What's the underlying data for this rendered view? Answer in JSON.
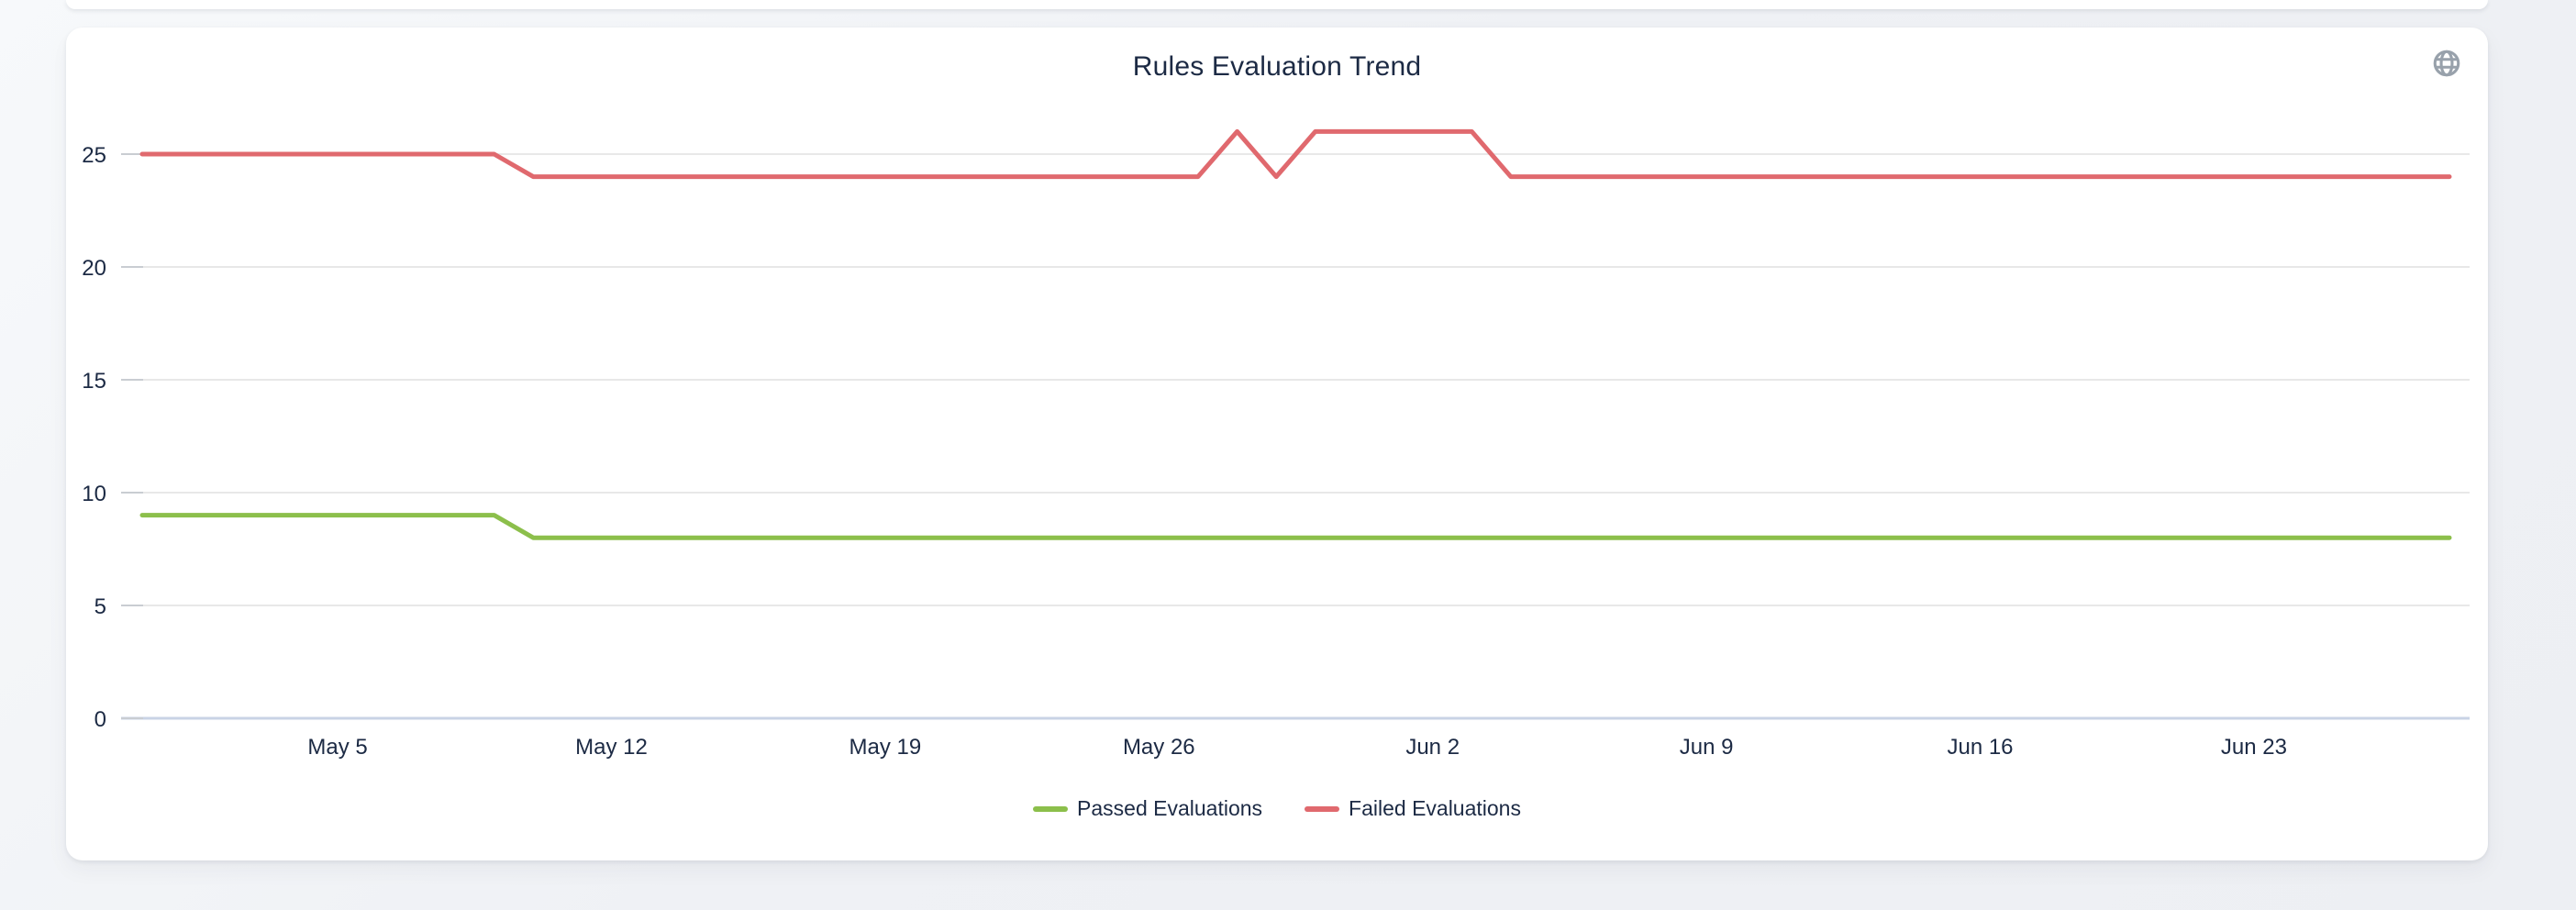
{
  "page": {
    "background": "#eff1f5"
  },
  "card": {
    "title": "Rules Evaluation Trend"
  },
  "icons": {
    "top_right": "globe-icon"
  },
  "colors": {
    "card_bg": "#ffffff",
    "text": "#1c2a44",
    "gridline": "#e8e8e8",
    "tick_stub": "#c9cdd2",
    "zero_line": "#c9d3e5",
    "passed": "#8cbf4b",
    "failed": "#e0696e",
    "globe_icon": "#98a1ab"
  },
  "chart_data": {
    "type": "line",
    "title": "Rules Evaluation Trend",
    "x_cadence": "daily",
    "x_start_date": "Apr 30",
    "x_end_date": "Jun 28",
    "x_tick_labels": [
      "May 5",
      "May 12",
      "May 19",
      "May 26",
      "Jun 2",
      "Jun 9",
      "Jun 16",
      "Jun 23"
    ],
    "x_tick_indices": [
      5,
      12,
      19,
      26,
      33,
      40,
      47,
      54
    ],
    "y_ticks": [
      0,
      5,
      10,
      15,
      20,
      25
    ],
    "ylim": [
      0,
      26.5
    ],
    "grid": "horizontal",
    "legend_position": "bottom",
    "series": [
      {
        "name": "Passed Evaluations",
        "color": "#8cbf4b",
        "values": [
          9,
          9,
          9,
          9,
          9,
          9,
          9,
          9,
          9,
          9,
          8,
          8,
          8,
          8,
          8,
          8,
          8,
          8,
          8,
          8,
          8,
          8,
          8,
          8,
          8,
          8,
          8,
          8,
          8,
          8,
          8,
          8,
          8,
          8,
          8,
          8,
          8,
          8,
          8,
          8,
          8,
          8,
          8,
          8,
          8,
          8,
          8,
          8,
          8,
          8,
          8,
          8,
          8,
          8,
          8,
          8,
          8,
          8,
          8,
          8
        ]
      },
      {
        "name": "Failed Evaluations",
        "color": "#e0696e",
        "values": [
          25,
          25,
          25,
          25,
          25,
          25,
          25,
          25,
          25,
          25,
          24,
          24,
          24,
          24,
          24,
          24,
          24,
          24,
          24,
          24,
          24,
          24,
          24,
          24,
          24,
          24,
          24,
          24,
          26,
          24,
          26,
          26,
          26,
          26,
          26,
          24,
          24,
          24,
          24,
          24,
          24,
          24,
          24,
          24,
          24,
          24,
          24,
          24,
          24,
          24,
          24,
          24,
          24,
          24,
          24,
          24,
          24,
          24,
          24,
          24
        ]
      }
    ]
  }
}
